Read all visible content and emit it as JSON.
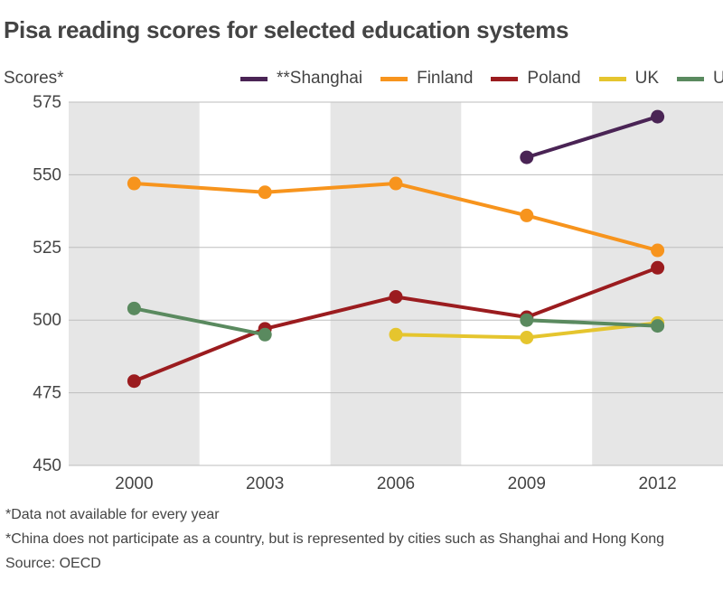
{
  "chart_data": {
    "type": "line",
    "title": "Pisa reading scores for selected education systems",
    "ylabel": "Scores*",
    "xlabel": "",
    "categories": [
      "2000",
      "2003",
      "2006",
      "2009",
      "2012"
    ],
    "ylim": [
      450,
      575
    ],
    "yticks": [
      450,
      475,
      500,
      525,
      550,
      575
    ],
    "grid": true,
    "legend_position": "top",
    "series": [
      {
        "name": "**Shanghai",
        "color": "#4a2455",
        "values": [
          null,
          null,
          null,
          556,
          570
        ]
      },
      {
        "name": "Finland",
        "color": "#f7941d",
        "values": [
          547,
          544,
          547,
          536,
          524
        ]
      },
      {
        "name": "Poland",
        "color": "#9b1c1f",
        "values": [
          479,
          497,
          508,
          501,
          518
        ]
      },
      {
        "name": "UK",
        "color": "#e5c52e",
        "values": [
          null,
          null,
          495,
          494,
          499
        ]
      },
      {
        "name": "US",
        "color": "#5a8a5f",
        "values": [
          504,
          495,
          null,
          500,
          498
        ]
      }
    ]
  },
  "notes": {
    "note1": "*Data not available for every year",
    "note2": "*China does not participate as a country, but is represented by cities such as Shanghai and Hong Kong",
    "source": "Source: OECD"
  }
}
